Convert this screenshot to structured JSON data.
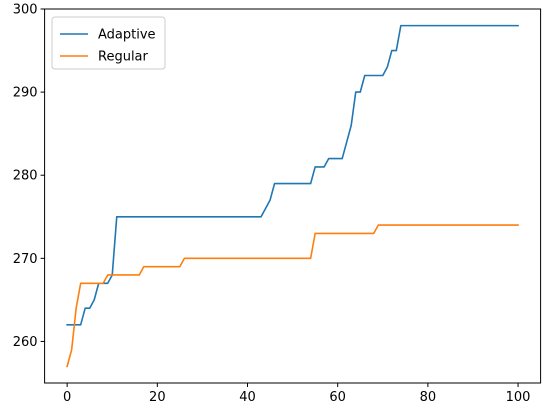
{
  "chart_data": {
    "type": "line",
    "title": "",
    "xlabel": "",
    "ylabel": "",
    "xlim": [
      -5,
      105
    ],
    "ylim": [
      255,
      300
    ],
    "xticks": [
      0,
      20,
      40,
      60,
      80,
      100
    ],
    "yticks": [
      260,
      270,
      280,
      290,
      300
    ],
    "grid": false,
    "legend_position": "top-left",
    "series": [
      {
        "name": "Adaptive",
        "color": "#1f77b4",
        "points": [
          [
            0,
            262
          ],
          [
            3,
            262
          ],
          [
            4,
            264
          ],
          [
            5,
            264
          ],
          [
            6,
            265
          ],
          [
            7,
            267
          ],
          [
            9,
            267
          ],
          [
            10,
            268
          ],
          [
            11,
            275
          ],
          [
            43,
            275
          ],
          [
            44,
            276
          ],
          [
            45,
            277
          ],
          [
            46,
            279
          ],
          [
            54,
            279
          ],
          [
            55,
            281
          ],
          [
            57,
            281
          ],
          [
            58,
            282
          ],
          [
            61,
            282
          ],
          [
            63,
            286
          ],
          [
            64,
            290
          ],
          [
            65,
            290
          ],
          [
            66,
            292
          ],
          [
            70,
            292
          ],
          [
            71,
            293
          ],
          [
            72,
            295
          ],
          [
            73,
            295
          ],
          [
            74,
            298
          ],
          [
            100,
            298
          ]
        ]
      },
      {
        "name": "Regular",
        "color": "#ff7f0e",
        "points": [
          [
            0,
            257
          ],
          [
            1,
            259
          ],
          [
            2,
            264
          ],
          [
            3,
            267
          ],
          [
            8,
            267
          ],
          [
            9,
            268
          ],
          [
            16,
            268
          ],
          [
            17,
            269
          ],
          [
            25,
            269
          ],
          [
            26,
            270
          ],
          [
            54,
            270
          ],
          [
            55,
            273
          ],
          [
            68,
            273
          ],
          [
            69,
            274
          ],
          [
            100,
            274
          ]
        ]
      }
    ]
  }
}
